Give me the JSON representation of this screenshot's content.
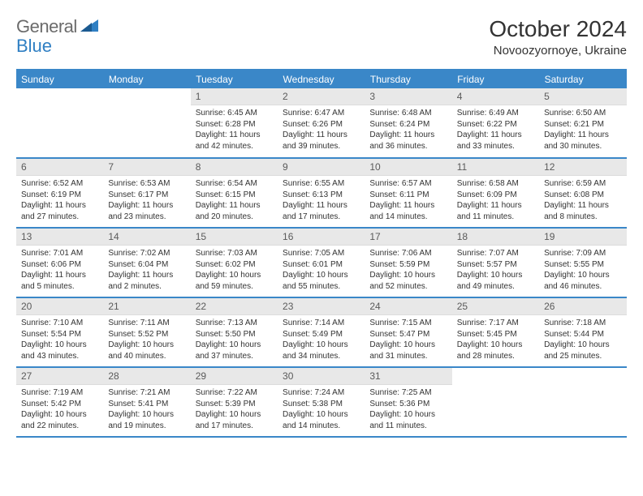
{
  "brand": {
    "part1": "General",
    "part2": "Blue"
  },
  "title": "October 2024",
  "location": "Novoozyornoye, Ukraine",
  "colors": {
    "header_bg": "#3a87c8",
    "header_text": "#ffffff",
    "daynum_bg": "#e8e8e8",
    "border": "#3a87c8",
    "body_text": "#333333",
    "logo_gray": "#6b6b6b",
    "logo_blue": "#2f7fc3"
  },
  "day_labels": [
    "Sunday",
    "Monday",
    "Tuesday",
    "Wednesday",
    "Thursday",
    "Friday",
    "Saturday"
  ],
  "weeks": [
    [
      {
        "n": "",
        "sunrise": "",
        "sunset": "",
        "daylight": ""
      },
      {
        "n": "",
        "sunrise": "",
        "sunset": "",
        "daylight": ""
      },
      {
        "n": "1",
        "sunrise": "Sunrise: 6:45 AM",
        "sunset": "Sunset: 6:28 PM",
        "daylight": "Daylight: 11 hours and 42 minutes."
      },
      {
        "n": "2",
        "sunrise": "Sunrise: 6:47 AM",
        "sunset": "Sunset: 6:26 PM",
        "daylight": "Daylight: 11 hours and 39 minutes."
      },
      {
        "n": "3",
        "sunrise": "Sunrise: 6:48 AM",
        "sunset": "Sunset: 6:24 PM",
        "daylight": "Daylight: 11 hours and 36 minutes."
      },
      {
        "n": "4",
        "sunrise": "Sunrise: 6:49 AM",
        "sunset": "Sunset: 6:22 PM",
        "daylight": "Daylight: 11 hours and 33 minutes."
      },
      {
        "n": "5",
        "sunrise": "Sunrise: 6:50 AM",
        "sunset": "Sunset: 6:21 PM",
        "daylight": "Daylight: 11 hours and 30 minutes."
      }
    ],
    [
      {
        "n": "6",
        "sunrise": "Sunrise: 6:52 AM",
        "sunset": "Sunset: 6:19 PM",
        "daylight": "Daylight: 11 hours and 27 minutes."
      },
      {
        "n": "7",
        "sunrise": "Sunrise: 6:53 AM",
        "sunset": "Sunset: 6:17 PM",
        "daylight": "Daylight: 11 hours and 23 minutes."
      },
      {
        "n": "8",
        "sunrise": "Sunrise: 6:54 AM",
        "sunset": "Sunset: 6:15 PM",
        "daylight": "Daylight: 11 hours and 20 minutes."
      },
      {
        "n": "9",
        "sunrise": "Sunrise: 6:55 AM",
        "sunset": "Sunset: 6:13 PM",
        "daylight": "Daylight: 11 hours and 17 minutes."
      },
      {
        "n": "10",
        "sunrise": "Sunrise: 6:57 AM",
        "sunset": "Sunset: 6:11 PM",
        "daylight": "Daylight: 11 hours and 14 minutes."
      },
      {
        "n": "11",
        "sunrise": "Sunrise: 6:58 AM",
        "sunset": "Sunset: 6:09 PM",
        "daylight": "Daylight: 11 hours and 11 minutes."
      },
      {
        "n": "12",
        "sunrise": "Sunrise: 6:59 AM",
        "sunset": "Sunset: 6:08 PM",
        "daylight": "Daylight: 11 hours and 8 minutes."
      }
    ],
    [
      {
        "n": "13",
        "sunrise": "Sunrise: 7:01 AM",
        "sunset": "Sunset: 6:06 PM",
        "daylight": "Daylight: 11 hours and 5 minutes."
      },
      {
        "n": "14",
        "sunrise": "Sunrise: 7:02 AM",
        "sunset": "Sunset: 6:04 PM",
        "daylight": "Daylight: 11 hours and 2 minutes."
      },
      {
        "n": "15",
        "sunrise": "Sunrise: 7:03 AM",
        "sunset": "Sunset: 6:02 PM",
        "daylight": "Daylight: 10 hours and 59 minutes."
      },
      {
        "n": "16",
        "sunrise": "Sunrise: 7:05 AM",
        "sunset": "Sunset: 6:01 PM",
        "daylight": "Daylight: 10 hours and 55 minutes."
      },
      {
        "n": "17",
        "sunrise": "Sunrise: 7:06 AM",
        "sunset": "Sunset: 5:59 PM",
        "daylight": "Daylight: 10 hours and 52 minutes."
      },
      {
        "n": "18",
        "sunrise": "Sunrise: 7:07 AM",
        "sunset": "Sunset: 5:57 PM",
        "daylight": "Daylight: 10 hours and 49 minutes."
      },
      {
        "n": "19",
        "sunrise": "Sunrise: 7:09 AM",
        "sunset": "Sunset: 5:55 PM",
        "daylight": "Daylight: 10 hours and 46 minutes."
      }
    ],
    [
      {
        "n": "20",
        "sunrise": "Sunrise: 7:10 AM",
        "sunset": "Sunset: 5:54 PM",
        "daylight": "Daylight: 10 hours and 43 minutes."
      },
      {
        "n": "21",
        "sunrise": "Sunrise: 7:11 AM",
        "sunset": "Sunset: 5:52 PM",
        "daylight": "Daylight: 10 hours and 40 minutes."
      },
      {
        "n": "22",
        "sunrise": "Sunrise: 7:13 AM",
        "sunset": "Sunset: 5:50 PM",
        "daylight": "Daylight: 10 hours and 37 minutes."
      },
      {
        "n": "23",
        "sunrise": "Sunrise: 7:14 AM",
        "sunset": "Sunset: 5:49 PM",
        "daylight": "Daylight: 10 hours and 34 minutes."
      },
      {
        "n": "24",
        "sunrise": "Sunrise: 7:15 AM",
        "sunset": "Sunset: 5:47 PM",
        "daylight": "Daylight: 10 hours and 31 minutes."
      },
      {
        "n": "25",
        "sunrise": "Sunrise: 7:17 AM",
        "sunset": "Sunset: 5:45 PM",
        "daylight": "Daylight: 10 hours and 28 minutes."
      },
      {
        "n": "26",
        "sunrise": "Sunrise: 7:18 AM",
        "sunset": "Sunset: 5:44 PM",
        "daylight": "Daylight: 10 hours and 25 minutes."
      }
    ],
    [
      {
        "n": "27",
        "sunrise": "Sunrise: 7:19 AM",
        "sunset": "Sunset: 5:42 PM",
        "daylight": "Daylight: 10 hours and 22 minutes."
      },
      {
        "n": "28",
        "sunrise": "Sunrise: 7:21 AM",
        "sunset": "Sunset: 5:41 PM",
        "daylight": "Daylight: 10 hours and 19 minutes."
      },
      {
        "n": "29",
        "sunrise": "Sunrise: 7:22 AM",
        "sunset": "Sunset: 5:39 PM",
        "daylight": "Daylight: 10 hours and 17 minutes."
      },
      {
        "n": "30",
        "sunrise": "Sunrise: 7:24 AM",
        "sunset": "Sunset: 5:38 PM",
        "daylight": "Daylight: 10 hours and 14 minutes."
      },
      {
        "n": "31",
        "sunrise": "Sunrise: 7:25 AM",
        "sunset": "Sunset: 5:36 PM",
        "daylight": "Daylight: 10 hours and 11 minutes."
      },
      {
        "n": "",
        "sunrise": "",
        "sunset": "",
        "daylight": ""
      },
      {
        "n": "",
        "sunrise": "",
        "sunset": "",
        "daylight": ""
      }
    ]
  ]
}
